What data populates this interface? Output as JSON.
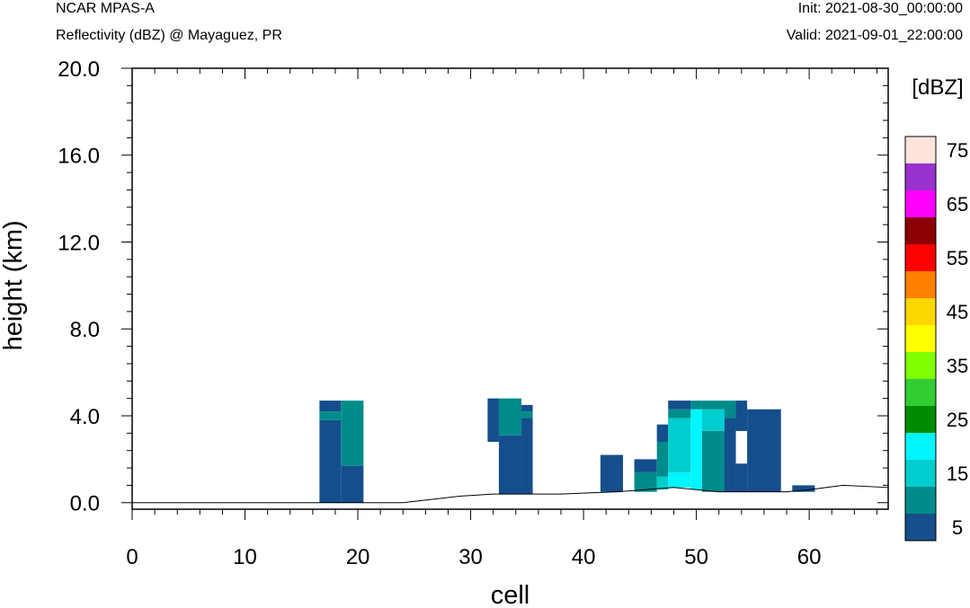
{
  "header": {
    "model": "NCAR MPAS-A",
    "field": "Reflectivity (dBZ) @ Mayaguez, PR",
    "init": "Init: 2021-08-30_00:00:00",
    "valid": "Valid: 2021-09-01_22:00:00"
  },
  "chart_data": {
    "type": "heatmap",
    "title": "Reflectivity (dBZ) @ Mayaguez, PR",
    "xlabel": "cell",
    "ylabel": "height (km)",
    "xlim": [
      0,
      67
    ],
    "ylim": [
      -0.3,
      20.0
    ],
    "x_ticks": [
      "0",
      "10",
      "20",
      "30",
      "40",
      "50",
      "60"
    ],
    "y_ticks": [
      "0.0",
      "4.0",
      "8.0",
      "12.0",
      "16.0",
      "20.0"
    ],
    "colorbar": {
      "title": "[dBZ]",
      "levels": [
        5,
        10,
        15,
        20,
        25,
        30,
        35,
        40,
        45,
        50,
        55,
        60,
        65,
        70,
        75
      ],
      "labels": [
        "5",
        "15",
        "25",
        "35",
        "45",
        "55",
        "65",
        "75"
      ],
      "colors": [
        "#154e8c",
        "#008b8b",
        "#00cdcd",
        "#00f5ff",
        "#008b00",
        "#32cd32",
        "#7fff00",
        "#ffff00",
        "#ffd700",
        "#ff8000",
        "#ff0000",
        "#8b0000",
        "#ff00ff",
        "#9932cc",
        "#ffe4dc"
      ]
    },
    "terrain": [
      [
        0,
        0.0
      ],
      [
        16.5,
        0.0
      ],
      [
        24,
        0.0
      ],
      [
        29,
        0.3
      ],
      [
        32,
        0.4
      ],
      [
        38,
        0.4
      ],
      [
        43,
        0.5
      ],
      [
        48,
        0.7
      ],
      [
        50,
        0.6
      ],
      [
        52,
        0.5
      ],
      [
        58,
        0.5
      ],
      [
        60,
        0.6
      ],
      [
        63,
        0.8
      ],
      [
        67,
        0.7
      ]
    ],
    "cells": [
      {
        "x": [
          16.6,
          18.5
        ],
        "z": [
          0.0,
          3.8
        ],
        "dbz": 5
      },
      {
        "x": [
          16.6,
          18.5
        ],
        "z": [
          3.8,
          4.2
        ],
        "dbz": 10
      },
      {
        "x": [
          16.6,
          18.5
        ],
        "z": [
          4.2,
          4.7
        ],
        "dbz": 5
      },
      {
        "x": [
          18.5,
          20.5
        ],
        "z": [
          0.0,
          1.7
        ],
        "dbz": 5
      },
      {
        "x": [
          18.5,
          20.5
        ],
        "z": [
          1.7,
          4.7
        ],
        "dbz": 10
      },
      {
        "x": [
          31.5,
          32.5
        ],
        "z": [
          2.8,
          4.8
        ],
        "dbz": 5
      },
      {
        "x": [
          32.5,
          34.5
        ],
        "z": [
          0.4,
          3.1
        ],
        "dbz": 5
      },
      {
        "x": [
          32.5,
          34.5
        ],
        "z": [
          3.1,
          4.8
        ],
        "dbz": 10
      },
      {
        "x": [
          34.5,
          35.5
        ],
        "z": [
          0.4,
          3.9
        ],
        "dbz": 5
      },
      {
        "x": [
          34.5,
          35.5
        ],
        "z": [
          3.9,
          4.2
        ],
        "dbz": 10
      },
      {
        "x": [
          34.5,
          35.5
        ],
        "z": [
          4.2,
          4.5
        ],
        "dbz": 5
      },
      {
        "x": [
          41.5,
          43.5
        ],
        "z": [
          0.5,
          2.2
        ],
        "dbz": 5
      },
      {
        "x": [
          44.5,
          46.5
        ],
        "z": [
          0.5,
          1.4
        ],
        "dbz": 10
      },
      {
        "x": [
          44.5,
          46.5
        ],
        "z": [
          1.4,
          2.0
        ],
        "dbz": 5
      },
      {
        "x": [
          46.5,
          47.5
        ],
        "z": [
          0.6,
          1.2
        ],
        "dbz": 15
      },
      {
        "x": [
          46.5,
          47.5
        ],
        "z": [
          1.2,
          2.8
        ],
        "dbz": 10
      },
      {
        "x": [
          46.5,
          47.5
        ],
        "z": [
          2.8,
          3.6
        ],
        "dbz": 5
      },
      {
        "x": [
          47.5,
          49.5
        ],
        "z": [
          0.7,
          1.4
        ],
        "dbz": 20
      },
      {
        "x": [
          47.5,
          49.5
        ],
        "z": [
          1.4,
          3.9
        ],
        "dbz": 15
      },
      {
        "x": [
          47.5,
          49.5
        ],
        "z": [
          3.9,
          4.3
        ],
        "dbz": 10
      },
      {
        "x": [
          47.5,
          49.5
        ],
        "z": [
          4.3,
          4.7
        ],
        "dbz": 5
      },
      {
        "x": [
          49.5,
          50.5
        ],
        "z": [
          0.6,
          4.3
        ],
        "dbz": 20
      },
      {
        "x": [
          49.5,
          50.5
        ],
        "z": [
          4.3,
          4.7
        ],
        "dbz": 10
      },
      {
        "x": [
          50.5,
          52.5
        ],
        "z": [
          0.5,
          3.3
        ],
        "dbz": 10
      },
      {
        "x": [
          50.5,
          52.5
        ],
        "z": [
          3.3,
          4.3
        ],
        "dbz": 15
      },
      {
        "x": [
          50.5,
          52.5
        ],
        "z": [
          4.3,
          4.7
        ],
        "dbz": 10
      },
      {
        "x": [
          52.5,
          53.5
        ],
        "z": [
          0.5,
          3.9
        ],
        "dbz": 5
      },
      {
        "x": [
          52.5,
          53.5
        ],
        "z": [
          3.9,
          4.7
        ],
        "dbz": 10
      },
      {
        "x": [
          53.5,
          54.5
        ],
        "z": [
          0.5,
          1.8
        ],
        "dbz": 5
      },
      {
        "x": [
          53.5,
          54.5
        ],
        "z": [
          3.3,
          4.7
        ],
        "dbz": 5
      },
      {
        "x": [
          54.5,
          57.5
        ],
        "z": [
          0.5,
          4.3
        ],
        "dbz": 5
      },
      {
        "x": [
          58.5,
          60.5
        ],
        "z": [
          0.5,
          0.8
        ],
        "dbz": 5
      }
    ]
  }
}
